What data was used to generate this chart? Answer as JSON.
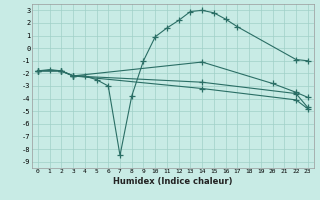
{
  "title": "",
  "xlabel": "Humidex (Indice chaleur)",
  "ylabel": "",
  "bg_color": "#c8ebe5",
  "grid_color": "#a0d0c8",
  "line_color": "#2a6e65",
  "xlim": [
    -0.5,
    23.5
  ],
  "ylim": [
    -9.5,
    3.5
  ],
  "xticks": [
    0,
    1,
    2,
    3,
    4,
    5,
    6,
    7,
    8,
    9,
    10,
    11,
    12,
    13,
    14,
    15,
    16,
    17,
    18,
    19,
    20,
    21,
    22,
    23
  ],
  "yticks": [
    -9,
    -8,
    -7,
    -6,
    -5,
    -4,
    -3,
    -2,
    -1,
    0,
    1,
    2,
    3
  ],
  "line1_x": [
    0,
    1,
    2,
    3,
    4,
    5,
    6,
    7,
    8,
    9,
    10,
    11,
    12,
    13,
    14,
    15,
    16,
    17,
    22,
    23
  ],
  "line1_y": [
    -1.8,
    -1.7,
    -1.8,
    -2.2,
    -2.2,
    -2.5,
    -3.0,
    -8.5,
    -3.8,
    -1.0,
    0.9,
    1.6,
    2.2,
    2.9,
    3.0,
    2.8,
    2.3,
    1.7,
    -0.9,
    -1.0
  ],
  "line2_x": [
    0,
    2,
    3,
    14,
    20,
    22,
    23
  ],
  "line2_y": [
    -1.8,
    -1.8,
    -2.2,
    -1.1,
    -2.8,
    -3.5,
    -3.9
  ],
  "line3_x": [
    0,
    2,
    3,
    14,
    22,
    23
  ],
  "line3_y": [
    -1.8,
    -1.8,
    -2.2,
    -2.7,
    -3.6,
    -4.7
  ],
  "line4_x": [
    0,
    2,
    3,
    14,
    22,
    23
  ],
  "line4_y": [
    -1.8,
    -1.8,
    -2.2,
    -3.2,
    -4.1,
    -4.8
  ]
}
